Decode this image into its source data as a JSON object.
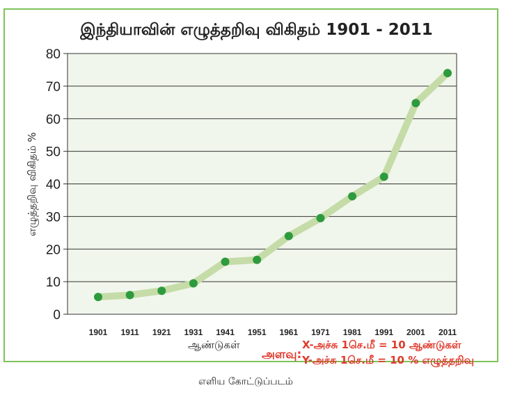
{
  "chart_data": {
    "type": "line",
    "title": "இந்தியாவின் எழுத்தறிவு விகிதம்  1901 - 2011",
    "xlabel": "ஆண்டுகள்",
    "ylabel": "எழுத்தறிவு விகிதம் %",
    "categories": [
      "1901",
      "1911",
      "1921",
      "1931",
      "1941",
      "1951",
      "1961",
      "1971",
      "1981",
      "1991",
      "2001",
      "2011"
    ],
    "values": [
      5.3,
      5.9,
      7.2,
      9.5,
      16.1,
      16.7,
      24.0,
      29.5,
      36.2,
      42.2,
      64.8,
      74.0
    ],
    "yticks": [
      "0",
      "10",
      "20",
      "30",
      "40",
      "50",
      "60",
      "70",
      "80"
    ],
    "ylim": [
      0,
      80
    ],
    "grid": true,
    "colors": {
      "line": "#c5dca8",
      "point": "#2e9a3e",
      "plot_bg": "#f1f6ec",
      "frame": "#7cc35a",
      "scale_text": "#e03a2c"
    }
  },
  "scale": {
    "label": "அளவு:",
    "x": "X-அச்சு 1செ.மீ = 10 ஆண்டுகள்",
    "y": "Y-அச்சு 1செ.மீ  = 10 % எழுத்தறிவு"
  },
  "caption": "எளிய கோட்டுப்படம்"
}
